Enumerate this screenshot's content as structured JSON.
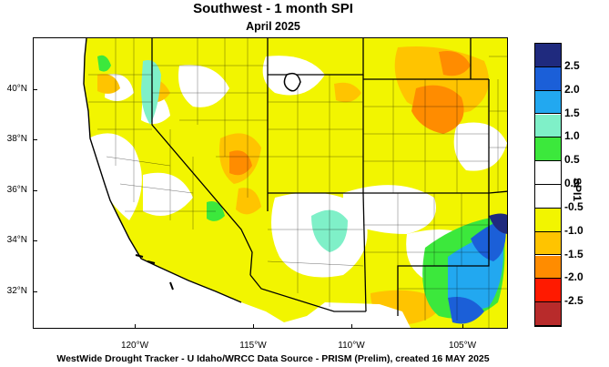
{
  "title": "Southwest - 1 month SPI",
  "subtitle": "April 2025",
  "credits": "WestWide Drought Tracker - U Idaho/WRCC  Data Source - PRISM (Prelim), created 16 MAY 2025",
  "legend": {
    "title": "SPI1",
    "labels": [
      "2.5",
      "2.0",
      "1.5",
      "1.0",
      "0.5",
      "0.0",
      "-0.5",
      "-1.0",
      "-1.5",
      "-2.0",
      "-2.5"
    ],
    "colors": [
      "#1f2a7e",
      "#1b5fd8",
      "#22a8f0",
      "#7ff0c8",
      "#3ce83c",
      "#ffffff",
      "#ffffff",
      "#f2f500",
      "#ffc400",
      "#ff8c00",
      "#ff1a00",
      "#b82b2b"
    ]
  },
  "axes": {
    "lat_labels": [
      "40°N",
      "38°N",
      "36°N",
      "34°N",
      "32°N"
    ],
    "lon_labels": [
      "120°W",
      "115°W",
      "110°W",
      "105°W"
    ]
  },
  "map": {
    "region": "Southwest US",
    "dominant_category": "-0.5 to -1.0 (yellow)",
    "colors": {
      "ocean": "#ffffff",
      "border": "#000000"
    }
  }
}
